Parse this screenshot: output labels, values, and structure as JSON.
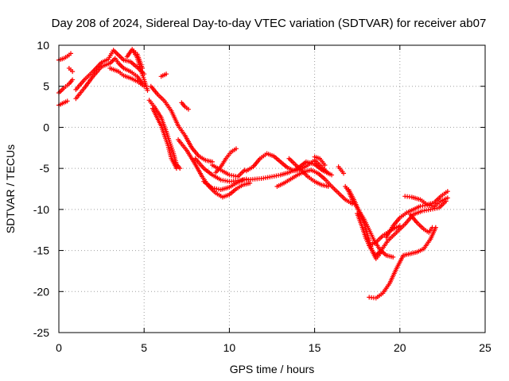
{
  "chart_data": {
    "type": "scatter",
    "title": "Day 208 of 2024, Sidereal Day-to-day VTEC variation (SDTVAR) for receiver ab07",
    "xlabel": "GPS time / hours",
    "ylabel": "SDTVAR / TECUs",
    "xlim": [
      0,
      25
    ],
    "ylim": [
      -25,
      10
    ],
    "xticks": [
      "0",
      "5",
      "10",
      "15",
      "20",
      "25"
    ],
    "yticks": [
      "10",
      "5",
      "0",
      "-5",
      "-10",
      "-15",
      "-20",
      "-25"
    ],
    "grid": true,
    "marker": "plus",
    "color": "#ff0000",
    "series": [
      {
        "name": "",
        "points": [
          [
            0.0,
            8.2
          ],
          [
            0.3,
            8.4
          ],
          [
            0.6,
            8.8
          ],
          [
            0.7,
            9.0
          ]
        ]
      },
      {
        "name": "",
        "points": [
          [
            0.0,
            4.2
          ],
          [
            0.3,
            4.8
          ],
          [
            0.6,
            5.3
          ],
          [
            0.8,
            5.8
          ]
        ]
      },
      {
        "name": "",
        "points": [
          [
            0.0,
            2.7
          ],
          [
            0.3,
            3.0
          ],
          [
            0.5,
            3.2
          ]
        ]
      },
      {
        "name": "",
        "points": [
          [
            0.6,
            7.2
          ],
          [
            0.8,
            6.8
          ]
        ]
      },
      {
        "name": "",
        "points": [
          [
            1.0,
            3.5
          ],
          [
            1.5,
            4.8
          ],
          [
            2.0,
            6.2
          ],
          [
            2.5,
            7.4
          ],
          [
            3.0,
            7.8
          ],
          [
            3.3,
            8.4
          ],
          [
            3.5,
            7.8
          ],
          [
            3.8,
            7.2
          ],
          [
            4.2,
            6.8
          ],
          [
            4.6,
            6.2
          ],
          [
            4.9,
            5.3
          ]
        ]
      },
      {
        "name": "",
        "points": [
          [
            1.0,
            4.6
          ],
          [
            1.5,
            5.8
          ],
          [
            2.0,
            6.8
          ],
          [
            2.5,
            7.9
          ],
          [
            2.9,
            8.3
          ],
          [
            3.2,
            9.4
          ],
          [
            3.5,
            8.8
          ],
          [
            3.8,
            8.2
          ],
          [
            4.2,
            8.0
          ],
          [
            4.6,
            7.3
          ],
          [
            5.0,
            6.5
          ]
        ]
      },
      {
        "name": "",
        "points": [
          [
            3.0,
            7.2
          ],
          [
            3.5,
            6.8
          ],
          [
            3.8,
            6.3
          ],
          [
            4.2,
            6.0
          ],
          [
            4.6,
            5.6
          ],
          [
            5.0,
            5.0
          ]
        ]
      },
      {
        "name": "",
        "points": [
          [
            4.0,
            8.6
          ],
          [
            4.3,
            9.5
          ],
          [
            4.6,
            8.5
          ],
          [
            4.8,
            7.0
          ],
          [
            5.0,
            5.8
          ],
          [
            5.2,
            4.5
          ]
        ]
      },
      {
        "name": "",
        "points": [
          [
            4.4,
            9.3
          ],
          [
            4.6,
            8.9
          ],
          [
            4.9,
            7.2
          ]
        ]
      },
      {
        "name": "",
        "points": [
          [
            5.4,
            5.0
          ],
          [
            5.8,
            4.0
          ],
          [
            6.2,
            3.2
          ],
          [
            6.6,
            2.0
          ],
          [
            7.0,
            0.2
          ],
          [
            7.4,
            -1.0
          ],
          [
            7.8,
            -2.5
          ],
          [
            8.2,
            -3.5
          ],
          [
            8.6,
            -4.0
          ],
          [
            9.0,
            -4.2
          ]
        ]
      },
      {
        "name": "",
        "points": [
          [
            6.0,
            6.2
          ],
          [
            6.3,
            6.5
          ]
        ]
      },
      {
        "name": "",
        "points": [
          [
            5.3,
            3.3
          ],
          [
            5.6,
            2.5
          ],
          [
            6.0,
            1.2
          ],
          [
            6.3,
            -0.5
          ],
          [
            6.5,
            -1.8
          ],
          [
            6.7,
            -3.0
          ],
          [
            6.9,
            -4.5
          ],
          [
            7.1,
            -5.0
          ]
        ]
      },
      {
        "name": "",
        "points": [
          [
            5.5,
            2.3
          ],
          [
            6.0,
            0.2
          ],
          [
            6.4,
            -2.2
          ],
          [
            6.6,
            -3.8
          ],
          [
            6.9,
            -5.0
          ]
        ]
      },
      {
        "name": "",
        "points": [
          [
            7.2,
            3.0
          ],
          [
            7.4,
            2.5
          ],
          [
            7.6,
            2.2
          ]
        ]
      },
      {
        "name": "",
        "points": [
          [
            7.0,
            -1.5
          ],
          [
            7.5,
            -2.8
          ],
          [
            8.0,
            -4.5
          ],
          [
            8.4,
            -6.0
          ],
          [
            8.8,
            -7.2
          ],
          [
            9.2,
            -8.0
          ],
          [
            9.6,
            -8.5
          ],
          [
            10.0,
            -8.2
          ],
          [
            10.4,
            -7.5
          ],
          [
            10.8,
            -7.0
          ],
          [
            11.2,
            -6.8
          ]
        ]
      },
      {
        "name": "",
        "points": [
          [
            8.0,
            -3.8
          ],
          [
            8.5,
            -5.0
          ],
          [
            9.0,
            -5.8
          ],
          [
            9.5,
            -6.4
          ],
          [
            10.0,
            -6.6
          ],
          [
            10.5,
            -6.5
          ],
          [
            11.0,
            -6.3
          ]
        ]
      },
      {
        "name": "",
        "points": [
          [
            8.5,
            -6.6
          ],
          [
            9.0,
            -7.4
          ],
          [
            9.5,
            -7.6
          ],
          [
            10.0,
            -7.3
          ],
          [
            10.4,
            -6.8
          ],
          [
            10.8,
            -6.4
          ]
        ]
      },
      {
        "name": "",
        "points": [
          [
            9.2,
            -5.5
          ],
          [
            9.5,
            -4.8
          ],
          [
            9.8,
            -3.8
          ],
          [
            10.1,
            -3.0
          ],
          [
            10.4,
            -2.6
          ]
        ]
      },
      {
        "name": "",
        "points": [
          [
            9.0,
            -4.6
          ],
          [
            9.5,
            -5.2
          ],
          [
            10.0,
            -5.8
          ],
          [
            10.5,
            -6.0
          ],
          [
            10.9,
            -5.2
          ]
        ]
      },
      {
        "name": "",
        "points": [
          [
            11.0,
            -5.3
          ],
          [
            11.4,
            -4.8
          ],
          [
            11.8,
            -3.8
          ],
          [
            12.2,
            -3.2
          ],
          [
            12.6,
            -3.5
          ],
          [
            13.0,
            -4.2
          ],
          [
            13.4,
            -4.9
          ],
          [
            13.8,
            -5.3
          ],
          [
            14.2,
            -5.1
          ],
          [
            14.6,
            -4.6
          ],
          [
            15.0,
            -4.0
          ],
          [
            15.4,
            -4.8
          ],
          [
            15.8,
            -5.6
          ]
        ]
      },
      {
        "name": "",
        "points": [
          [
            11.0,
            -6.4
          ],
          [
            11.5,
            -6.3
          ],
          [
            12.0,
            -6.2
          ],
          [
            12.5,
            -6.0
          ],
          [
            13.0,
            -5.8
          ],
          [
            13.5,
            -5.5
          ],
          [
            14.0,
            -5.0
          ],
          [
            14.5,
            -4.2
          ],
          [
            15.0,
            -4.5
          ],
          [
            15.5,
            -5.3
          ],
          [
            16.0,
            -5.8
          ]
        ]
      },
      {
        "name": "",
        "points": [
          [
            12.8,
            -7.2
          ],
          [
            13.2,
            -6.8
          ],
          [
            13.6,
            -6.3
          ],
          [
            14.0,
            -5.8
          ],
          [
            14.4,
            -5.4
          ],
          [
            14.8,
            -5.2
          ],
          [
            15.2,
            -5.6
          ],
          [
            15.6,
            -6.3
          ],
          [
            16.0,
            -7.2
          ],
          [
            16.4,
            -8.0
          ],
          [
            16.8,
            -8.8
          ],
          [
            17.2,
            -9.3
          ]
        ]
      },
      {
        "name": "",
        "points": [
          [
            13.5,
            -3.8
          ],
          [
            13.8,
            -4.4
          ],
          [
            14.2,
            -5.2
          ],
          [
            14.6,
            -6.0
          ],
          [
            15.0,
            -6.6
          ],
          [
            15.4,
            -7.0
          ],
          [
            15.8,
            -7.2
          ]
        ]
      },
      {
        "name": "",
        "points": [
          [
            15.0,
            -3.6
          ],
          [
            15.3,
            -3.8
          ],
          [
            15.6,
            -4.6
          ]
        ]
      },
      {
        "name": "",
        "points": [
          [
            16.4,
            -4.8
          ],
          [
            16.7,
            -5.6
          ]
        ]
      },
      {
        "name": "",
        "points": [
          [
            16.8,
            -7.2
          ],
          [
            17.0,
            -7.8
          ],
          [
            17.2,
            -8.8
          ],
          [
            17.5,
            -9.8
          ],
          [
            17.9,
            -11.2
          ],
          [
            18.2,
            -12.5
          ],
          [
            18.5,
            -13.8
          ],
          [
            18.8,
            -14.8
          ],
          [
            19.2,
            -15.6
          ],
          [
            19.6,
            -15.8
          ]
        ]
      },
      {
        "name": "",
        "points": [
          [
            17.0,
            -7.6
          ],
          [
            17.3,
            -8.8
          ],
          [
            17.6,
            -10.2
          ],
          [
            17.9,
            -11.6
          ],
          [
            18.2,
            -13.8
          ],
          [
            18.4,
            -15.2
          ],
          [
            18.6,
            -16.0
          ],
          [
            18.9,
            -15.2
          ]
        ]
      },
      {
        "name": "",
        "points": [
          [
            17.5,
            -10.5
          ],
          [
            17.8,
            -12.2
          ],
          [
            18.0,
            -13.5
          ],
          [
            18.3,
            -14.8
          ],
          [
            18.6,
            -15.6
          ],
          [
            18.9,
            -15.0
          ],
          [
            19.3,
            -13.8
          ],
          [
            19.8,
            -12.8
          ],
          [
            20.3,
            -11.8
          ],
          [
            20.8,
            -10.6
          ],
          [
            21.3,
            -10.2
          ],
          [
            21.8,
            -10.0
          ],
          [
            22.3,
            -9.8
          ],
          [
            22.7,
            -9.0
          ]
        ]
      },
      {
        "name": "",
        "points": [
          [
            18.2,
            -14.4
          ],
          [
            18.6,
            -14.0
          ],
          [
            19.0,
            -13.2
          ],
          [
            19.5,
            -12.5
          ],
          [
            20.0,
            -12.0
          ]
        ]
      },
      {
        "name": "",
        "points": [
          [
            19.2,
            -13.4
          ],
          [
            19.6,
            -12.0
          ],
          [
            20.0,
            -11.0
          ],
          [
            20.4,
            -10.4
          ],
          [
            20.8,
            -10.0
          ],
          [
            21.2,
            -9.6
          ],
          [
            21.6,
            -9.5
          ],
          [
            22.0,
            -9.6
          ],
          [
            22.4,
            -9.0
          ],
          [
            22.8,
            -8.6
          ]
        ]
      },
      {
        "name": "",
        "points": [
          [
            20.3,
            -8.4
          ],
          [
            20.7,
            -8.5
          ],
          [
            21.2,
            -8.8
          ],
          [
            21.6,
            -9.4
          ],
          [
            22.0,
            -9.2
          ],
          [
            22.4,
            -8.4
          ],
          [
            22.8,
            -7.8
          ]
        ]
      },
      {
        "name": "",
        "points": [
          [
            20.6,
            -10.6
          ],
          [
            21.0,
            -11.6
          ],
          [
            21.4,
            -12.4
          ],
          [
            21.7,
            -12.8
          ],
          [
            21.9,
            -12.2
          ]
        ]
      },
      {
        "name": "",
        "points": [
          [
            18.2,
            -20.7
          ],
          [
            18.6,
            -20.8
          ],
          [
            19.0,
            -20.2
          ],
          [
            19.4,
            -19.0
          ],
          [
            19.8,
            -17.2
          ],
          [
            20.2,
            -15.6
          ],
          [
            20.6,
            -15.4
          ],
          [
            21.0,
            -15.2
          ],
          [
            21.4,
            -14.8
          ],
          [
            21.8,
            -13.6
          ],
          [
            22.1,
            -12.2
          ]
        ]
      }
    ]
  }
}
